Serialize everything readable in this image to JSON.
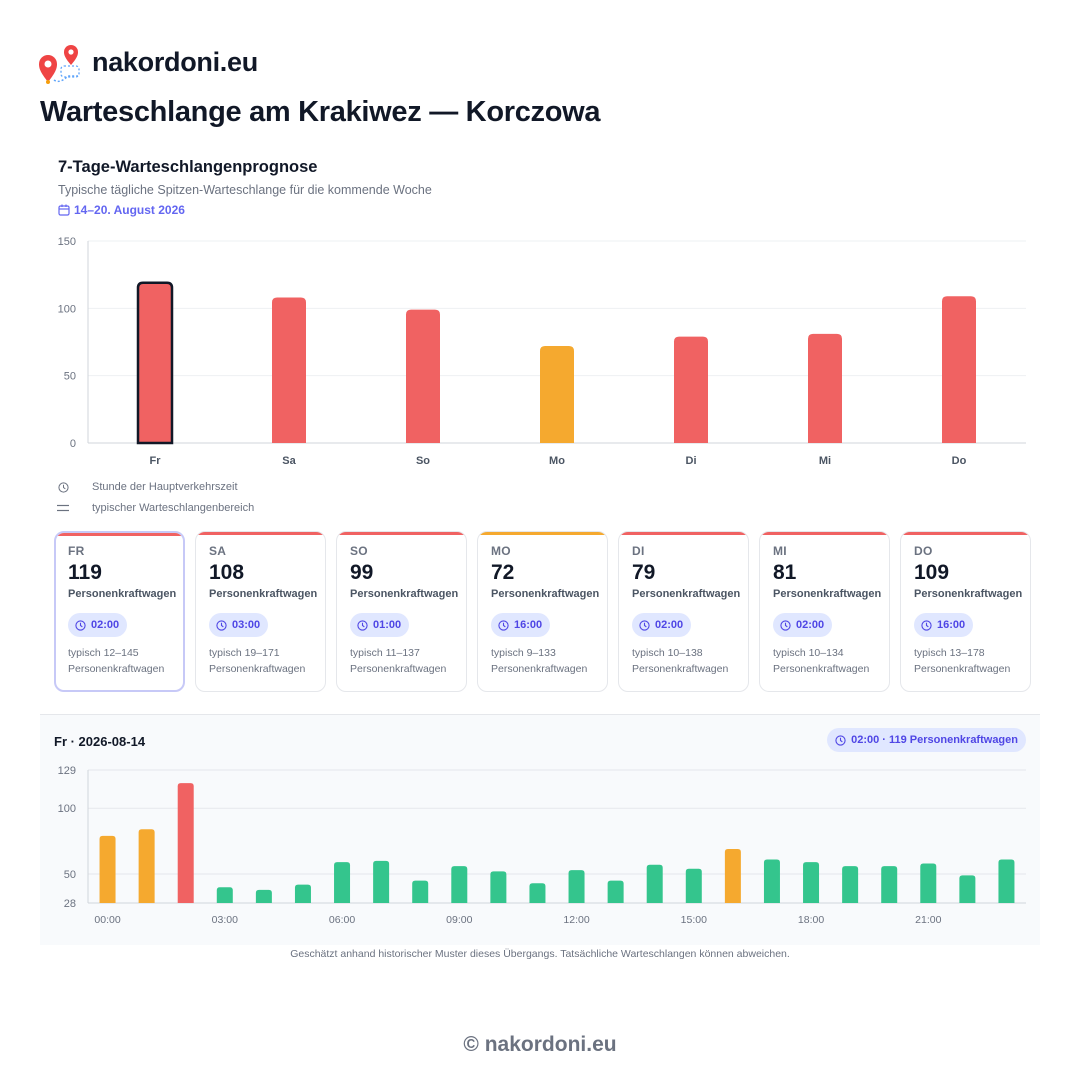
{
  "brand": {
    "name": "nakordoni.eu",
    "logo_icon": "map-pins-route-icon"
  },
  "page_title": "Warteschlange am Krakiwez — Korczowa",
  "forecast": {
    "title": "7-Tage-Warteschlangenprognose",
    "subtitle": "Typische tägliche Spitzen-Warteschlange für die kommende Woche",
    "date_range": "14–20. August 2026",
    "date_icon": "calendar-icon"
  },
  "legend": {
    "peak_hour": "Stunde der Hauptverkehrszeit",
    "typical_range": "typischer Warteschlangenbereich"
  },
  "colors": {
    "red": "#f06262",
    "orange": "#f5a92f",
    "green": "#34c58d",
    "accent": "#6366f1"
  },
  "chart_data": [
    {
      "type": "bar",
      "categories": [
        "Fr",
        "Sa",
        "So",
        "Mo",
        "Di",
        "Mi",
        "Do"
      ],
      "values": [
        119,
        108,
        99,
        72,
        79,
        81,
        109
      ],
      "levels": [
        "red",
        "red",
        "red",
        "orange",
        "red",
        "red",
        "red"
      ],
      "selected_index": 0,
      "ylim": [
        0,
        150
      ],
      "yticks": [
        0,
        50,
        100,
        150
      ],
      "grid": true
    },
    {
      "type": "bar",
      "x": [
        "00:00",
        "01:00",
        "02:00",
        "03:00",
        "04:00",
        "05:00",
        "06:00",
        "07:00",
        "08:00",
        "09:00",
        "10:00",
        "11:00",
        "12:00",
        "13:00",
        "14:00",
        "15:00",
        "16:00",
        "17:00",
        "18:00",
        "19:00",
        "20:00",
        "21:00",
        "22:00",
        "23:00"
      ],
      "values": [
        79,
        84,
        119,
        40,
        38,
        42,
        59,
        60,
        45,
        56,
        52,
        43,
        53,
        45,
        57,
        54,
        69,
        61,
        59,
        56,
        56,
        58,
        49,
        61
      ],
      "levels": [
        "orange",
        "orange",
        "red",
        "green",
        "green",
        "green",
        "green",
        "green",
        "green",
        "green",
        "green",
        "green",
        "green",
        "green",
        "green",
        "green",
        "orange",
        "green",
        "green",
        "green",
        "green",
        "green",
        "green",
        "green"
      ],
      "xtick_labels": [
        "00:00",
        "03:00",
        "06:00",
        "09:00",
        "12:00",
        "15:00",
        "18:00",
        "21:00"
      ],
      "ylim": [
        28,
        129
      ],
      "yticks": [
        28,
        50,
        100,
        129
      ],
      "grid": true
    }
  ],
  "cards": [
    {
      "day": "FR",
      "value": "119",
      "unit": "Personenkraftwagen",
      "peak": "02:00",
      "range": "typisch 12–145 Personenkraftwagen",
      "level": "red",
      "selected": true
    },
    {
      "day": "SA",
      "value": "108",
      "unit": "Personenkraftwagen",
      "peak": "03:00",
      "range": "typisch 19–171 Personenkraftwagen",
      "level": "red",
      "selected": false
    },
    {
      "day": "SO",
      "value": "99",
      "unit": "Personenkraftwagen",
      "peak": "01:00",
      "range": "typisch 11–137 Personenkraftwagen",
      "level": "red",
      "selected": false
    },
    {
      "day": "MO",
      "value": "72",
      "unit": "Personenkraftwagen",
      "peak": "16:00",
      "range": "typisch 9–133 Personenkraftwagen",
      "level": "orange",
      "selected": false
    },
    {
      "day": "DI",
      "value": "79",
      "unit": "Personenkraftwagen",
      "peak": "02:00",
      "range": "typisch 10–138 Personenkraftwagen",
      "level": "red",
      "selected": false
    },
    {
      "day": "MI",
      "value": "81",
      "unit": "Personenkraftwagen",
      "peak": "02:00",
      "range": "typisch 10–134 Personenkraftwagen",
      "level": "red",
      "selected": false
    },
    {
      "day": "DO",
      "value": "109",
      "unit": "Personenkraftwagen",
      "peak": "16:00",
      "range": "typisch 13–178 Personenkraftwagen",
      "level": "red",
      "selected": false
    }
  ],
  "hourly": {
    "title": "Fr · 2026-08-14",
    "badge": "02:00 · 119 Personenkraftwagen"
  },
  "footnote": "Geschätzt anhand historischer Muster dieses Übergangs. Tatsächliche Warteschlangen können abweichen.",
  "copyright": "© nakordoni.eu"
}
